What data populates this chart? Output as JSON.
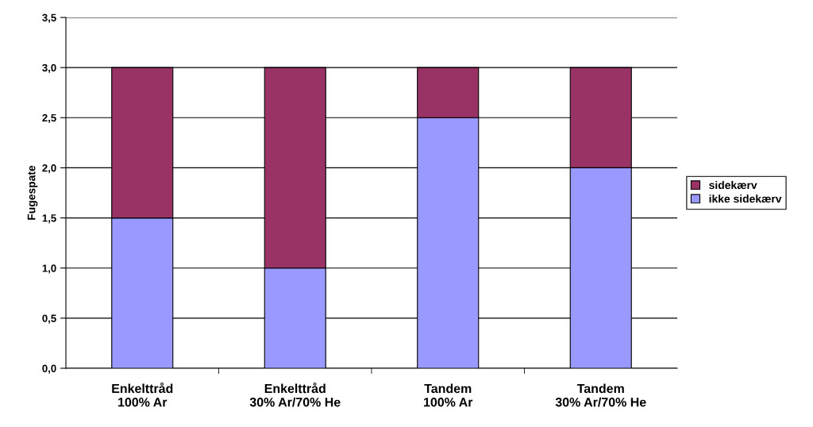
{
  "chart_data": {
    "type": "bar",
    "stacked": true,
    "ylabel": "Fugespate",
    "categories": [
      "Enkelttråd\n100% Ar",
      "Enkelttråd\n30% Ar/70% He",
      "Tandem\n100% Ar",
      "Tandem\n30% Ar/70% He"
    ],
    "series": [
      {
        "name": "ikke sidekærv",
        "color": "#9999ff",
        "values": [
          1.5,
          1.0,
          2.5,
          2.0
        ]
      },
      {
        "name": "sidekærv",
        "color": "#993366",
        "values": [
          1.5,
          2.0,
          0.5,
          1.0
        ]
      }
    ],
    "ylim": [
      0,
      3.5
    ],
    "yticks": [
      {
        "value": 0,
        "label": "0,0"
      },
      {
        "value": 0.5,
        "label": "0,5"
      },
      {
        "value": 1,
        "label": "1,0"
      },
      {
        "value": 1.5,
        "label": "1,5"
      },
      {
        "value": 2,
        "label": "2,0"
      },
      {
        "value": 2.5,
        "label": "2,5"
      },
      {
        "value": 3,
        "label": "3,0"
      },
      {
        "value": 3.5,
        "label": "3,5"
      }
    ],
    "grid": "y",
    "legend": "right"
  }
}
